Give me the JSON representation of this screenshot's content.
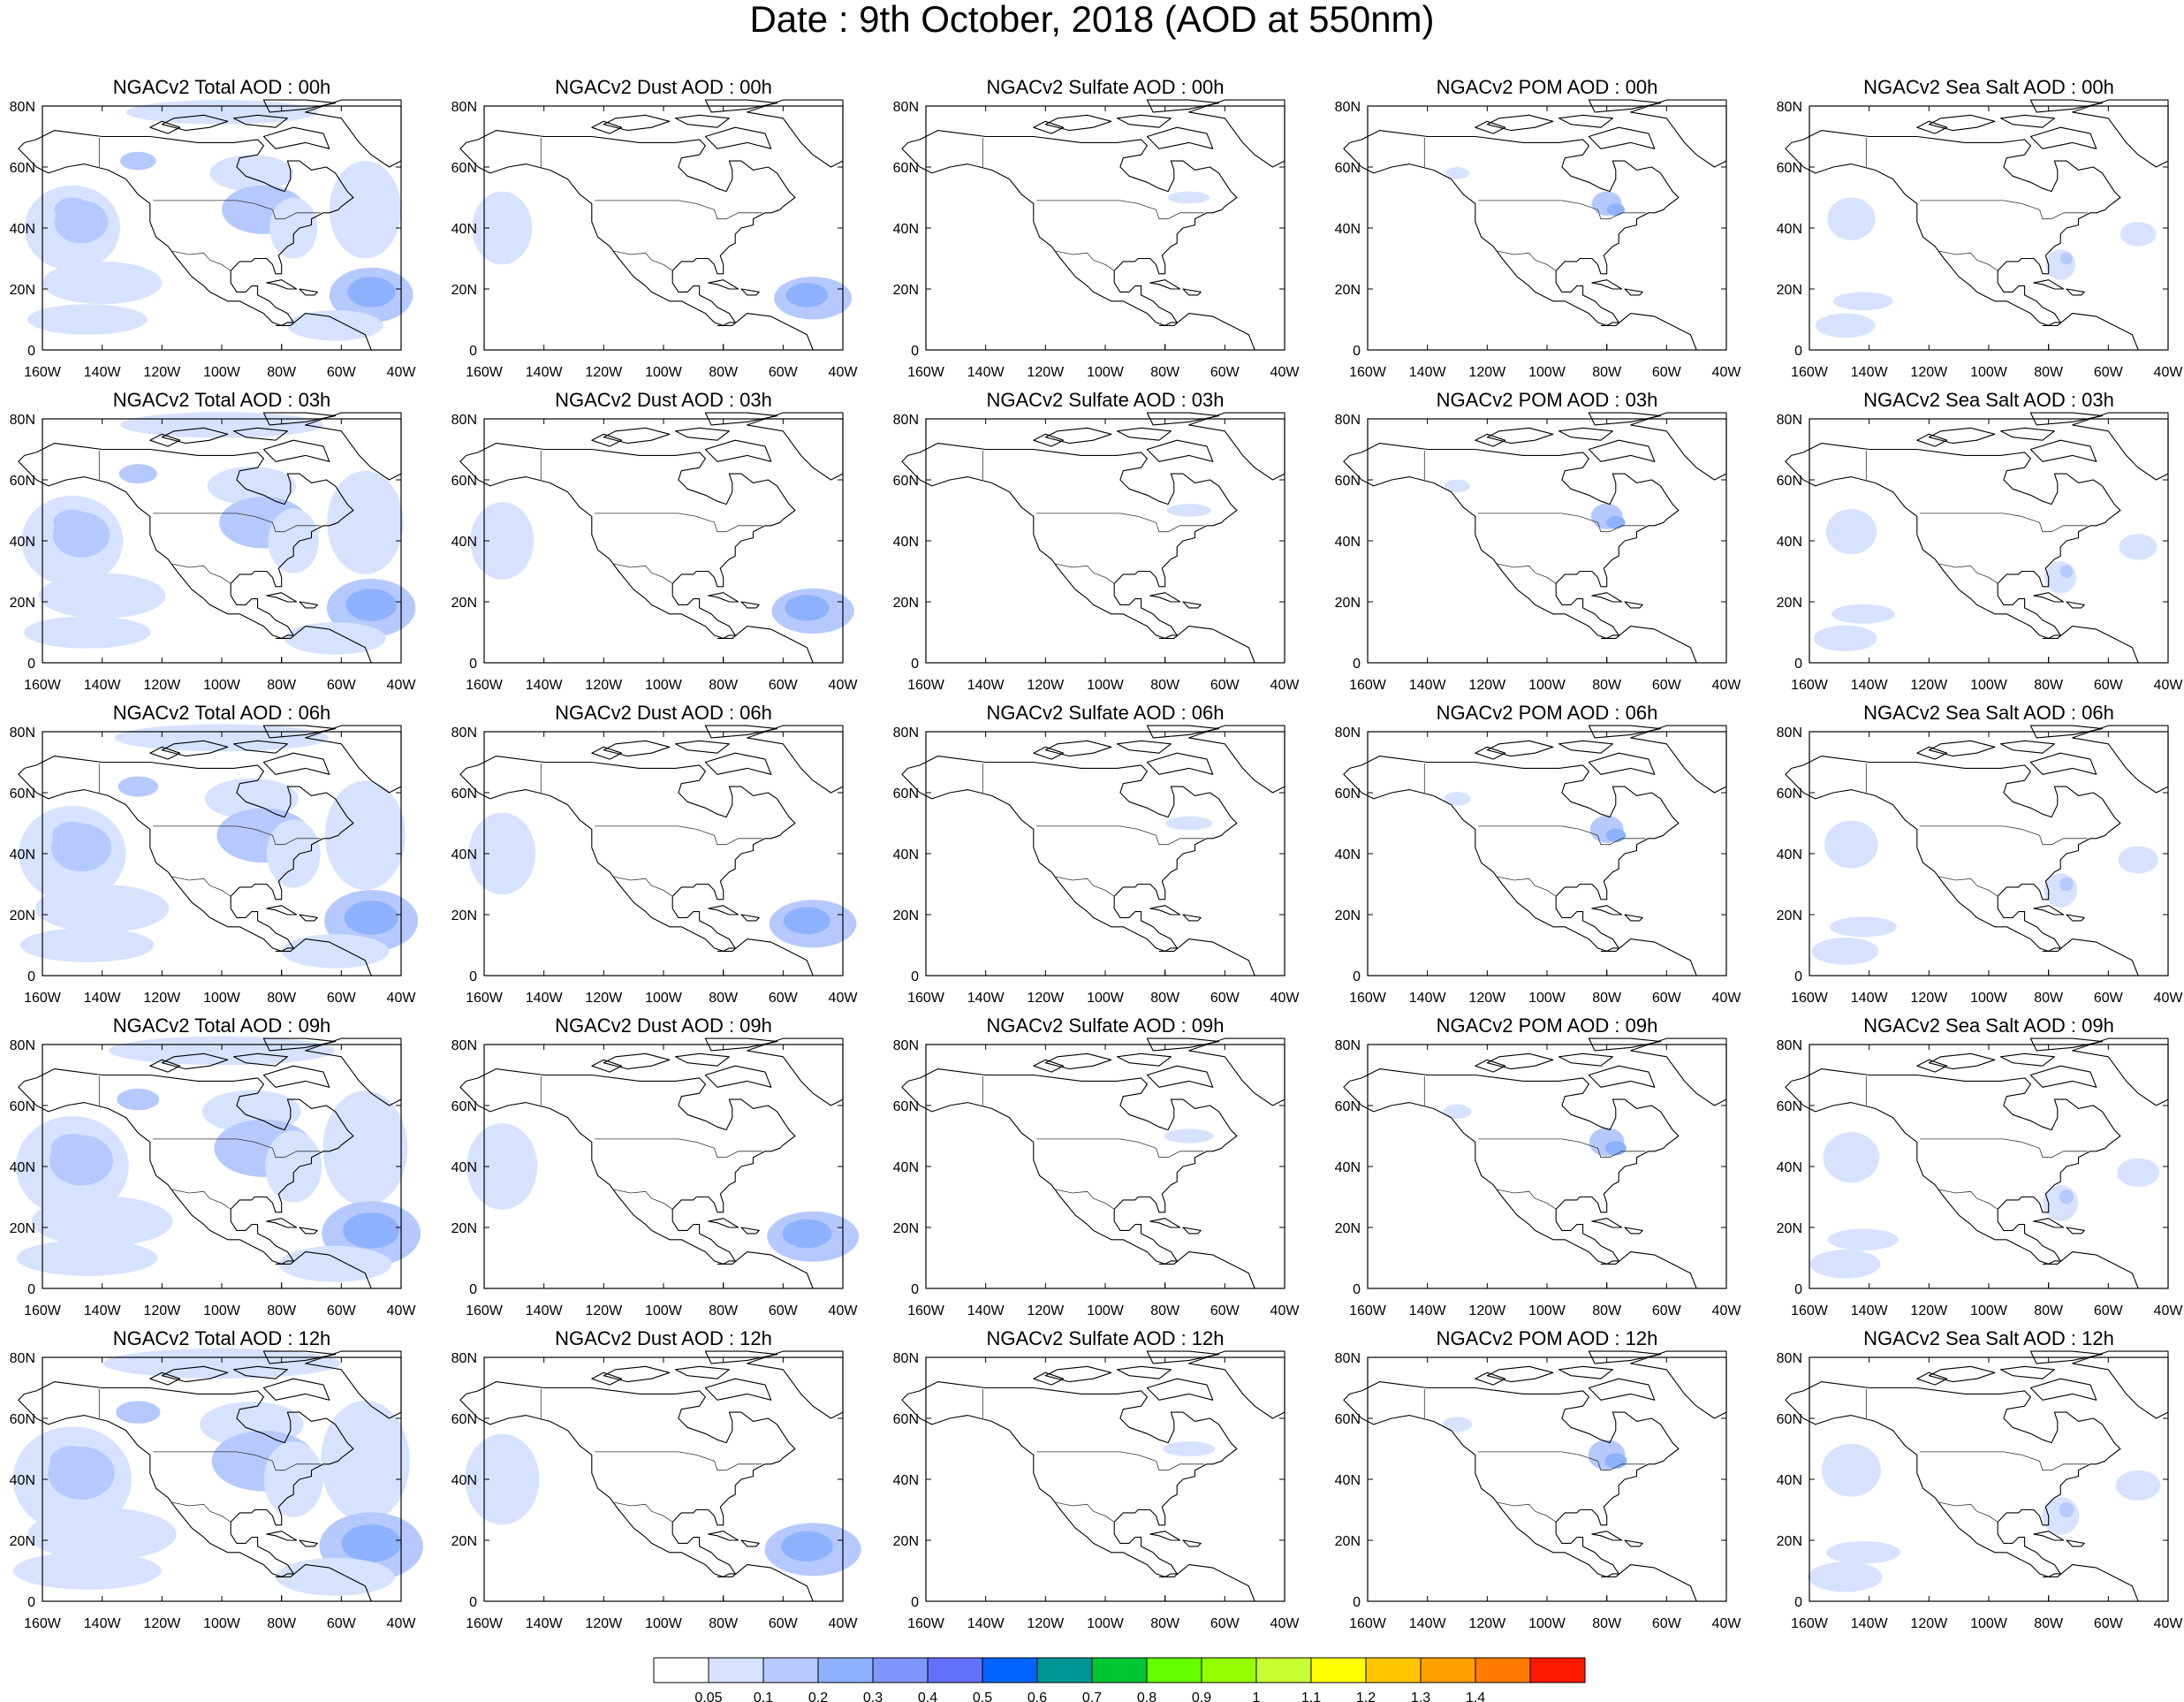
{
  "title": "Date : 9th October, 2018 (AOD at 550nm)",
  "axes": {
    "lon_ticks": [
      "160W",
      "140W",
      "120W",
      "100W",
      "80W",
      "60W",
      "40W"
    ],
    "lat_ticks": [
      "0",
      "20N",
      "40N",
      "60N",
      "80N"
    ],
    "lon_range": [
      -160,
      -40
    ],
    "lat_range": [
      0,
      80
    ]
  },
  "columns": [
    "total",
    "dust",
    "sulfate",
    "pom",
    "seasalt"
  ],
  "rows": [
    "00h",
    "03h",
    "06h",
    "09h",
    "12h"
  ],
  "panel_titles": [
    [
      "NGACv2 Total AOD : 00h",
      "NGACv2 Dust AOD : 00h",
      "NGACv2 Sulfate AOD : 00h",
      "NGACv2 POM AOD : 00h",
      "NGACv2 Sea Salt AOD : 00h"
    ],
    [
      "NGACv2 Total AOD : 03h",
      "NGACv2 Dust AOD : 03h",
      "NGACv2 Sulfate AOD : 03h",
      "NGACv2 POM AOD : 03h",
      "NGACv2 Sea Salt AOD : 03h"
    ],
    [
      "NGACv2 Total AOD : 06h",
      "NGACv2 Dust AOD : 06h",
      "NGACv2 Sulfate AOD : 06h",
      "NGACv2 POM AOD : 06h",
      "NGACv2 Sea Salt AOD : 06h"
    ],
    [
      "NGACv2 Total AOD : 09h",
      "NGACv2 Dust AOD : 09h",
      "NGACv2 Sulfate AOD : 09h",
      "NGACv2 POM AOD : 09h",
      "NGACv2 Sea Salt  AOD : 09h"
    ],
    [
      "NGACv2 Total AOD  : 12h",
      "NGACv2 Dust AOD : 12h",
      "NGACv2 Sulfate AOD : 12h",
      "NGACv2 POM  AOD : 12h",
      "NGACv2 Sea Salt  AOD : 12h"
    ]
  ],
  "colorbar": {
    "labels": [
      "0.05",
      "0.1",
      "0.2",
      "0.3",
      "0.4",
      "0.5",
      "0.6",
      "0.7",
      "0.8",
      "0.9",
      "1",
      "1.1",
      "1.2",
      "1.3",
      "1.4"
    ],
    "colors": [
      "#ffffff",
      "#d6e2ff",
      "#b5c9ff",
      "#8eb2ff",
      "#7f96ff",
      "#6370f8",
      "#0063ff",
      "#009696",
      "#00c633",
      "#63ff00",
      "#96ff00",
      "#c6ff33",
      "#ffff00",
      "#ffc600",
      "#ffa000",
      "#ff7c00",
      "#ff1900"
    ]
  },
  "map_colors": {
    "coast": "#000000",
    "low": "#d6e2ff",
    "mid": "#b5c9ff",
    "high": "#8eb2ff",
    "peak": "#7f96ff"
  }
}
